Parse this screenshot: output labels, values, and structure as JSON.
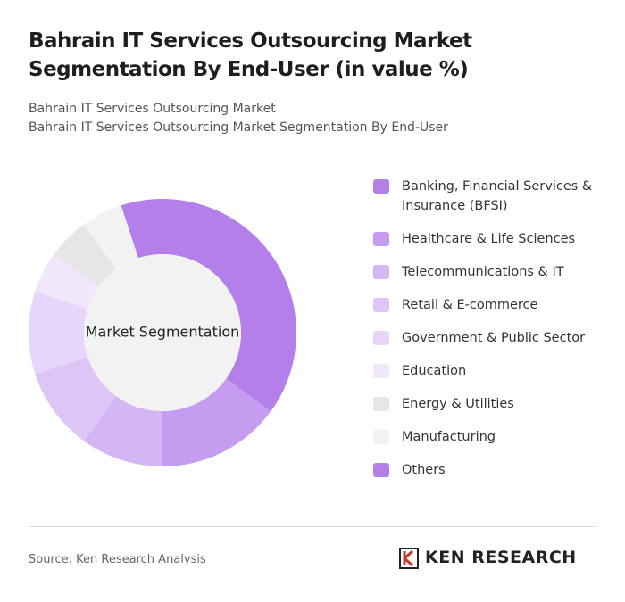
{
  "chart_data": {
    "type": "donut",
    "title": "Bahrain IT Services Outsourcing Market Segmentation By End-User (in value %)",
    "subtitle": [
      "Bahrain IT Services Outsourcing Market",
      "Bahrain IT Services Outsourcing Market Segmentation By End-User"
    ],
    "center_label": "Market Segmentation",
    "categories": [
      "Banking, Financial Services & Insurance (BFSI)",
      "Healthcare & Life Sciences",
      "Telecommunications & IT",
      "Retail & E-commerce",
      "Government & Public Sector",
      "Education",
      "Energy & Utilities",
      "Manufacturing",
      "Others"
    ],
    "values": [
      40,
      15,
      10,
      10,
      10,
      5,
      5,
      5,
      0
    ],
    "colors": [
      "#b57fea",
      "#c59cef",
      "#d5b6f4",
      "#ddc6f6",
      "#e7d6f9",
      "#f0e7fb",
      "#e6e6e6",
      "#f2f2f2",
      "#b57fea"
    ],
    "source": "Source: Ken Research Analysis",
    "brand": "KEN RESEARCH"
  }
}
